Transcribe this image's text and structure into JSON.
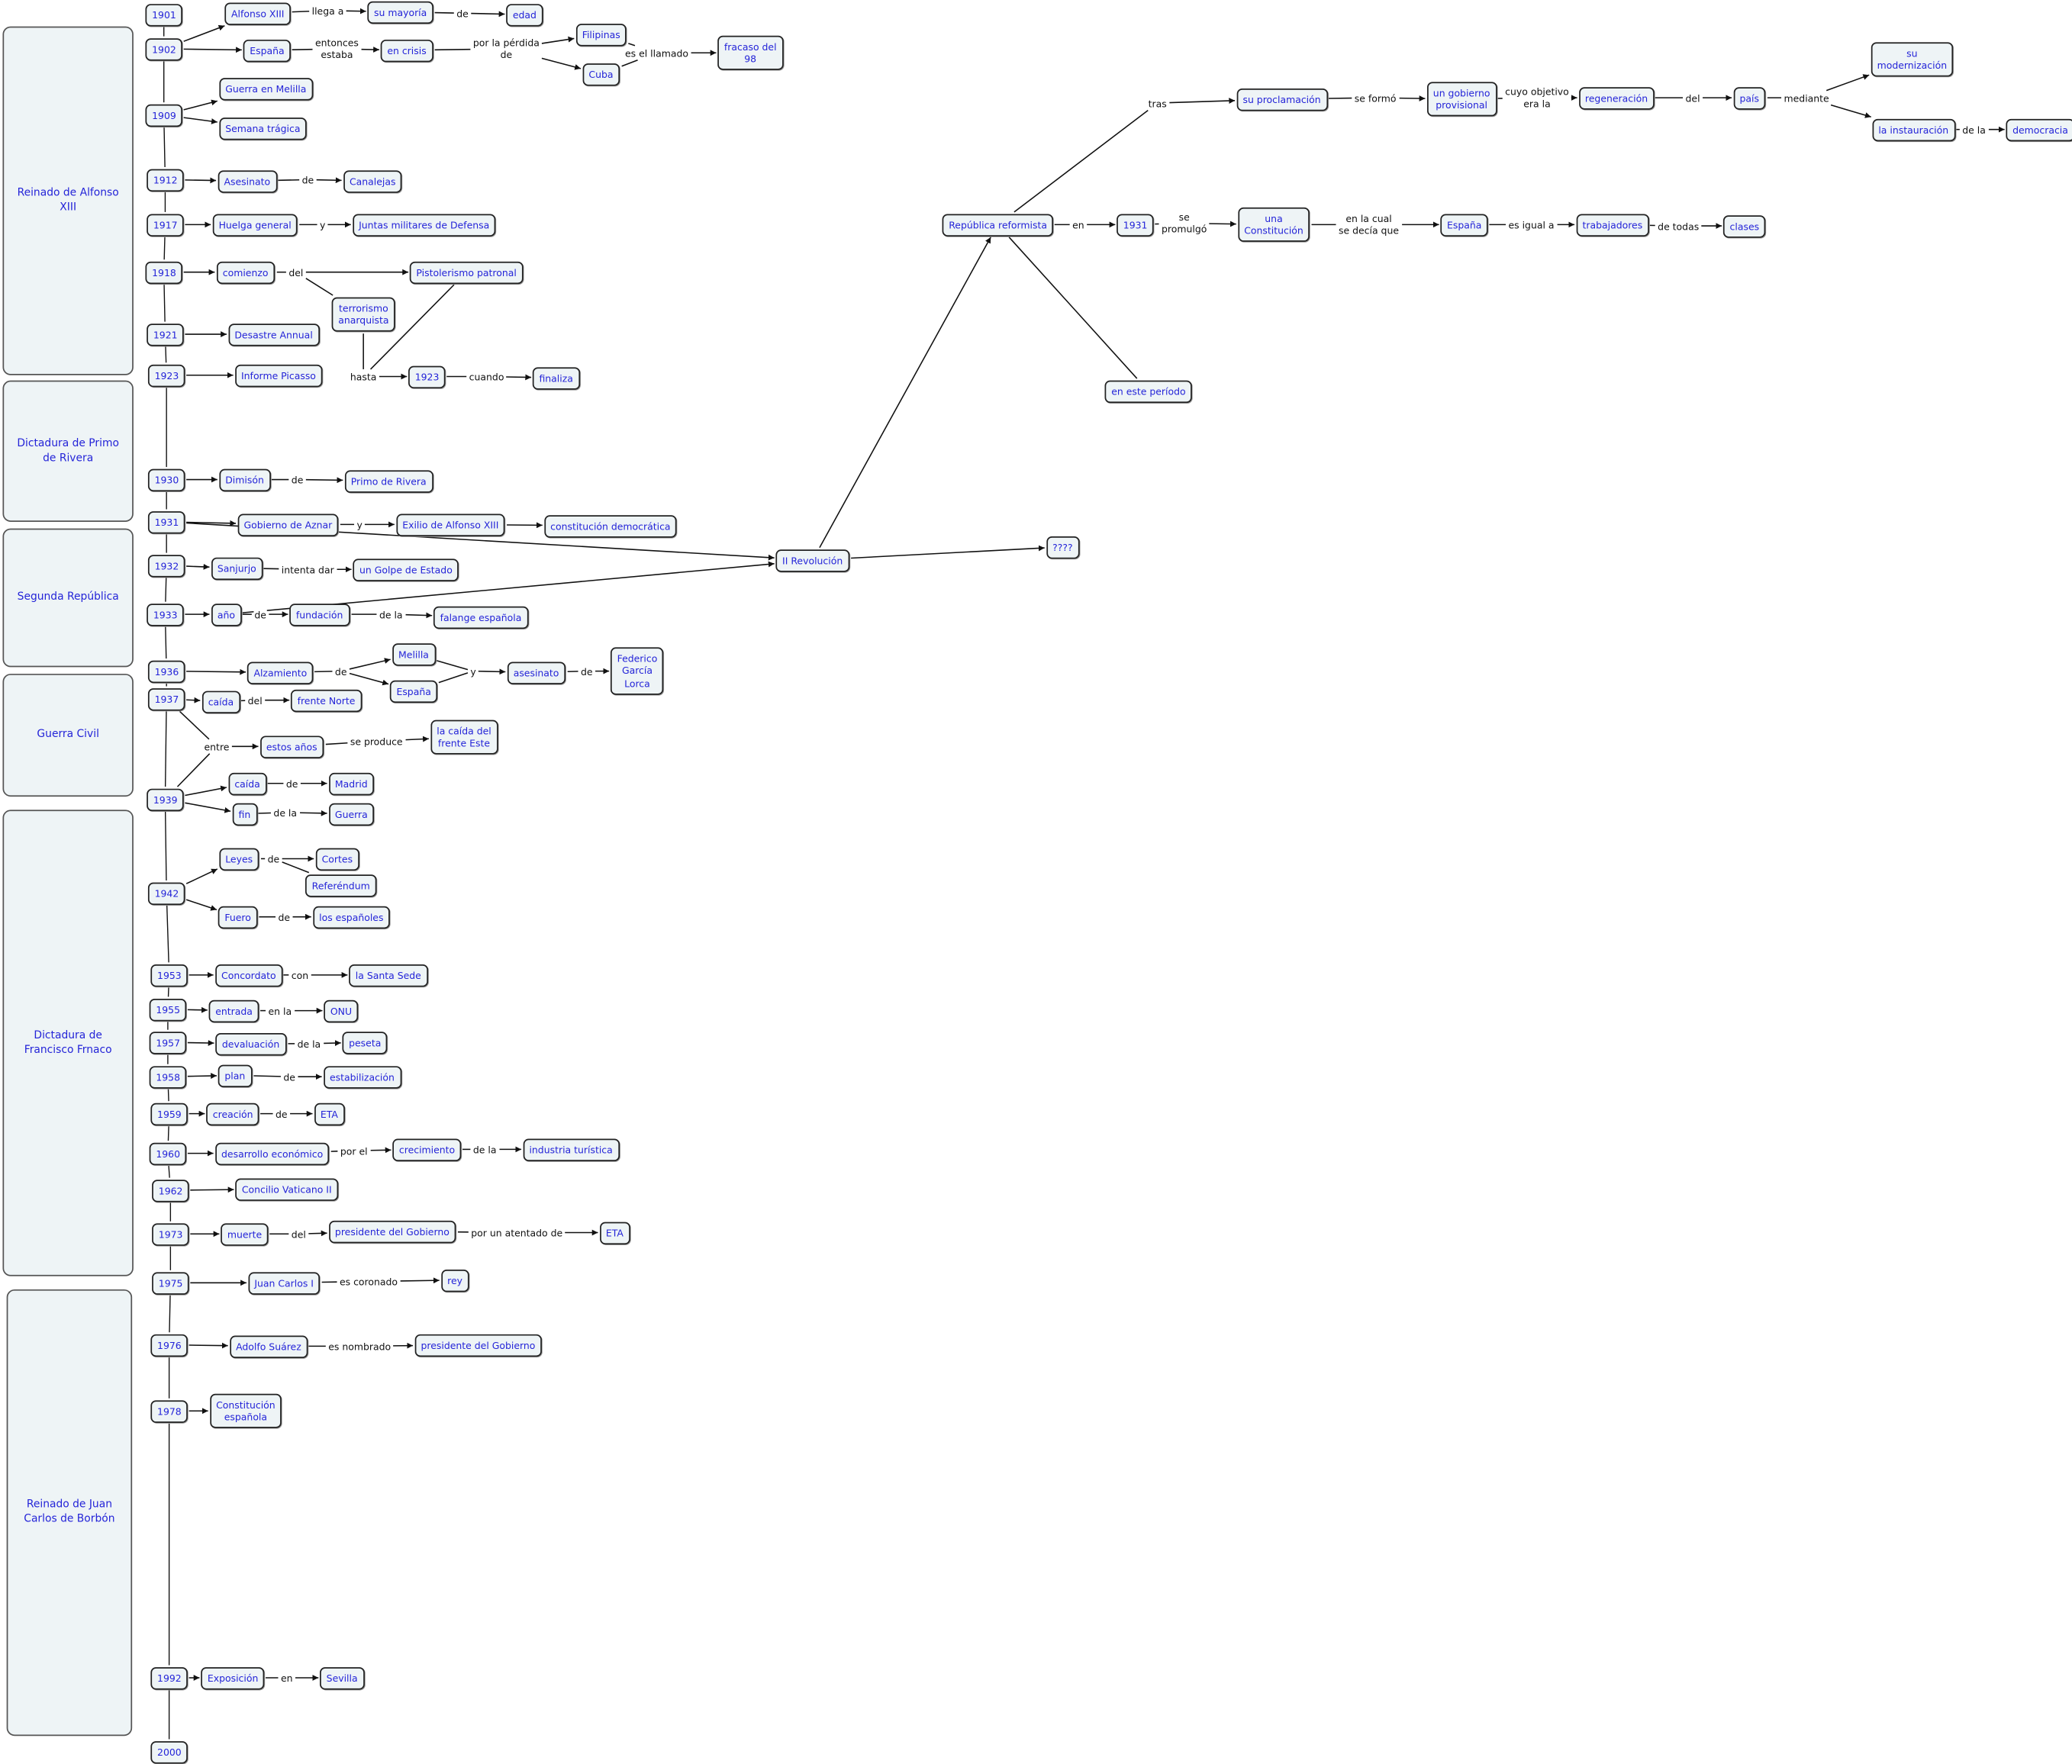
{
  "eras": [
    "Reinado de Alfonso XIII",
    "Dictadura de Primo de Rivera",
    "Segunda República",
    "Guerra Civil",
    "Dictadura de Francisco Frnaco",
    "Reinado de Juan Carlos de Borbón"
  ],
  "concepts": {
    "y1901": "1901",
    "y1902": "1902",
    "y1909": "1909",
    "y1912": "1912",
    "y1917": "1917",
    "y1918": "1918",
    "y1921": "1921",
    "y1923": "1923",
    "y1930": "1930",
    "y1931": "1931",
    "y1932": "1932",
    "y1933": "1933",
    "y1936": "1936",
    "y1937": "1937",
    "y1939": "1939",
    "y1942": "1942",
    "y1953": "1953",
    "y1955": "1955",
    "y1957": "1957",
    "y1958": "1958",
    "y1959": "1959",
    "y1960": "1960",
    "y1962": "1962",
    "y1973": "1973",
    "y1975": "1975",
    "y1976": "1976",
    "y1978": "1978",
    "y1992": "1992",
    "y2000": "2000",
    "c_alfonso": "Alfonso XIII",
    "c_mayoria": "su mayoría",
    "c_edad": "edad",
    "c_espana1": "España",
    "c_crisis": "en crisis",
    "c_filipinas": "Filipinas",
    "c_cuba": "Cuba",
    "c_fracaso": "fracaso del\n98",
    "c_melilla1": "Guerra en Melilla",
    "c_semana": "Semana trágica",
    "c_asesinato1": "Asesinato",
    "c_canalejas": "Canalejas",
    "c_huelga": "Huelga general",
    "c_juntas": "Juntas militares de Defensa",
    "c_comienzo": "comienzo",
    "c_pistol": "Pistolerismo patronal",
    "c_terror": "terrorismo\nanarquista",
    "c_desastre": "Desastre Annual",
    "c_informe": "Informe Picasso",
    "c_1923b": "1923",
    "c_finaliza": "finaliza",
    "c_dimision": "Dimisón",
    "c_primo": "Primo de Rivera",
    "c_aznar": "Gobierno de Aznar",
    "c_exilio": "Exilio de Alfonso XIII",
    "c_constdem": "constitución democrática",
    "c_revolucion": "II Revolución",
    "c_qqq": "????",
    "c_sanjurjo": "Sanjurjo",
    "c_golpe": "un Golpe de Estado",
    "c_ano": "año",
    "c_fundacion": "fundación",
    "c_falange": "falange española",
    "c_alzamiento": "Alzamiento",
    "c_melilla2": "Melilla",
    "c_espana2": "España",
    "c_asesinato2": "asesinato",
    "c_lorca": "Federico\nGarcía\nLorca",
    "c_caida1": "caída",
    "c_norte": "frente Norte",
    "c_estos": "estos años",
    "c_este": "la caída del\nfrente Este",
    "c_caida2": "caída",
    "c_madrid": "Madrid",
    "c_fin": "fin",
    "c_guerra": "Guerra",
    "c_leyes": "Leyes",
    "c_cortes": "Cortes",
    "c_refer": "Referéndum",
    "c_fuero": "Fuero",
    "c_espanoles": "los españoles",
    "c_concordato": "Concordato",
    "c_santa": "la Santa Sede",
    "c_entrada": "entrada",
    "c_onu": "ONU",
    "c_devaluacion": "devaluación",
    "c_peseta": "peseta",
    "c_plan": "plan",
    "c_estab": "estabilización",
    "c_creacion": "creación",
    "c_eta1": "ETA",
    "c_desarrollo": "desarrollo económico",
    "c_crec": "crecimiento",
    "c_industria": "industria turística",
    "c_concilio": "Concilio Vaticano II",
    "c_muerte": "muerte",
    "c_presidente1": "presidente del Gobierno",
    "c_eta2": "ETA",
    "c_juan": "Juan Carlos I",
    "c_rey": "rey",
    "c_suarez": "Adolfo Suárez",
    "c_presidente2": "presidente del Gobierno",
    "c_const": "Constitución\nespañola",
    "c_expo": "Exposición",
    "c_sevilla": "Sevilla",
    "c_republica": "República reformista",
    "c_1931b": "1931",
    "c_una": "una\nConstitución",
    "c_espana3": "España",
    "c_trab": "trabajadores",
    "c_clases": "clases",
    "c_proclam": "su proclamación",
    "c_gobprov": "un gobierno\nprovisional",
    "c_regen": "regeneración",
    "c_pais": "país",
    "c_moderni": "su\nmodernización",
    "c_instaur": "la instauración",
    "c_democracia": "democracia",
    "c_periodo": "en este período"
  },
  "linking_phrases": {
    "l_llega": "llega a",
    "l_de1": "de",
    "l_entonces": "entonces\nestaba",
    "l_perdida": "por la pérdida\nde",
    "l_llamado": "es el llamado",
    "l_de2": "de",
    "l_y1": "y",
    "l_del1": "del",
    "l_hasta": "hasta",
    "l_cuando": "cuando",
    "l_de3": "de",
    "l_y2": "y",
    "l_intenta": "intenta dar",
    "l_de4": "de",
    "l_dela1": "de la",
    "l_de5": "de",
    "l_y3": "y",
    "l_de6": "de",
    "l_del2": "del",
    "l_entre": "entre",
    "l_produce": "se produce",
    "l_de7": "de",
    "l_dela2": "de la",
    "l_de8": "de",
    "l_de9": "de",
    "l_con": "con",
    "l_enla1": "en la",
    "l_dela3": "de la",
    "l_de10": "de",
    "l_de11": "de",
    "l_porel": "por el",
    "l_dela4": "de la",
    "l_del3": "del",
    "l_atentado": "por un atentado de",
    "l_coronado": "es coronado",
    "l_nombrado": "es nombrado",
    "l_en1": "en",
    "l_en2": "en",
    "l_promulgo": "se\npromulgó",
    "l_cual": "en la cual\nse decía que",
    "l_igual": "es igual a",
    "l_todas": "de todas",
    "l_tras": "tras",
    "l_formo": "se formó",
    "l_objetivo": "cuyo objetivo\nera la",
    "l_del4": "del",
    "l_mediante": "mediante",
    "l_dela5": "de la"
  },
  "connections": [
    [
      "y1901",
      "y1902"
    ],
    [
      "y1902",
      "y1909"
    ],
    [
      "y1909",
      "y1912"
    ],
    [
      "y1912",
      "y1917"
    ],
    [
      "y1917",
      "y1918"
    ],
    [
      "y1918",
      "y1921"
    ],
    [
      "y1921",
      "y1923"
    ],
    [
      "y1923",
      "y1930"
    ],
    [
      "y1930",
      "y1931"
    ],
    [
      "y1931",
      "y1932"
    ],
    [
      "y1932",
      "y1933"
    ],
    [
      "y1933",
      "y1936"
    ],
    [
      "y1936",
      "y1937"
    ],
    [
      "y1937",
      "y1939"
    ],
    [
      "y1939",
      "y1942"
    ],
    [
      "y1942",
      "y1953"
    ],
    [
      "y1953",
      "y1955"
    ],
    [
      "y1955",
      "y1957"
    ],
    [
      "y1957",
      "y1958"
    ],
    [
      "y1958",
      "y1959"
    ],
    [
      "y1959",
      "y1960"
    ],
    [
      "y1960",
      "y1962"
    ],
    [
      "y1962",
      "y1973"
    ],
    [
      "y1973",
      "y1975"
    ],
    [
      "y1975",
      "y1976"
    ],
    [
      "y1976",
      "y1978"
    ],
    [
      "y1978",
      "y1992"
    ],
    [
      "y1992",
      "y2000"
    ],
    [
      "y1902",
      "c_alfonso"
    ],
    [
      "c_alfonso",
      "l_llega"
    ],
    [
      "l_llega",
      "c_mayoria"
    ],
    [
      "c_mayoria",
      "l_de1"
    ],
    [
      "l_de1",
      "c_edad"
    ],
    [
      "y1902",
      "c_espana1"
    ],
    [
      "c_espana1",
      "l_entonces"
    ],
    [
      "l_entonces",
      "c_crisis"
    ],
    [
      "c_crisis",
      "l_perdida"
    ],
    [
      "l_perdida",
      "c_filipinas"
    ],
    [
      "l_perdida",
      "c_cuba"
    ],
    [
      "c_filipinas",
      "l_llamado"
    ],
    [
      "c_cuba",
      "l_llamado"
    ],
    [
      "l_llamado",
      "c_fracaso"
    ],
    [
      "y1909",
      "c_melilla1"
    ],
    [
      "y1909",
      "c_semana"
    ],
    [
      "y1912",
      "c_asesinato1"
    ],
    [
      "c_asesinato1",
      "l_de2"
    ],
    [
      "l_de2",
      "c_canalejas"
    ],
    [
      "y1917",
      "c_huelga"
    ],
    [
      "c_huelga",
      "l_y1"
    ],
    [
      "l_y1",
      "c_juntas"
    ],
    [
      "y1918",
      "c_comienzo"
    ],
    [
      "c_comienzo",
      "l_del1"
    ],
    [
      "l_del1",
      "c_pistol"
    ],
    [
      "l_del1",
      "c_terror"
    ],
    [
      "c_terror",
      "l_hasta"
    ],
    [
      "c_pistol",
      "l_hasta"
    ],
    [
      "l_hasta",
      "c_1923b"
    ],
    [
      "c_1923b",
      "l_cuando"
    ],
    [
      "l_cuando",
      "c_finaliza"
    ],
    [
      "y1921",
      "c_desastre"
    ],
    [
      "y1923",
      "c_informe"
    ],
    [
      "y1930",
      "c_dimision"
    ],
    [
      "c_dimision",
      "l_de3"
    ],
    [
      "l_de3",
      "c_primo"
    ],
    [
      "y1931",
      "c_aznar"
    ],
    [
      "c_aznar",
      "l_y2"
    ],
    [
      "l_y2",
      "c_exilio"
    ],
    [
      "c_exilio",
      "c_constdem"
    ],
    [
      "y1931",
      "c_revolucion"
    ],
    [
      "y1932",
      "c_sanjurjo"
    ],
    [
      "c_sanjurjo",
      "l_intenta"
    ],
    [
      "l_intenta",
      "c_golpe"
    ],
    [
      "y1933",
      "c_ano"
    ],
    [
      "c_ano",
      "l_de4"
    ],
    [
      "l_de4",
      "c_fundacion"
    ],
    [
      "c_fundacion",
      "l_dela1"
    ],
    [
      "l_dela1",
      "c_falange"
    ],
    [
      "c_ano",
      "c_revolucion"
    ],
    [
      "c_revolucion",
      "c_qqq"
    ],
    [
      "c_revolucion",
      "c_republica"
    ],
    [
      "y1936",
      "c_alzamiento"
    ],
    [
      "c_alzamiento",
      "l_de5"
    ],
    [
      "l_de5",
      "c_melilla2"
    ],
    [
      "l_de5",
      "c_espana2"
    ],
    [
      "c_melilla2",
      "l_y3"
    ],
    [
      "c_espana2",
      "l_y3"
    ],
    [
      "l_y3",
      "c_asesinato2"
    ],
    [
      "c_asesinato2",
      "l_de6"
    ],
    [
      "l_de6",
      "c_lorca"
    ],
    [
      "y1937",
      "c_caida1"
    ],
    [
      "c_caida1",
      "l_del2"
    ],
    [
      "l_del2",
      "c_norte"
    ],
    [
      "y1937",
      "l_entre"
    ],
    [
      "y1939",
      "l_entre"
    ],
    [
      "l_entre",
      "c_estos"
    ],
    [
      "c_estos",
      "l_produce"
    ],
    [
      "l_produce",
      "c_este"
    ],
    [
      "y1939",
      "c_caida2"
    ],
    [
      "c_caida2",
      "l_de7"
    ],
    [
      "l_de7",
      "c_madrid"
    ],
    [
      "y1939",
      "c_fin"
    ],
    [
      "c_fin",
      "l_dela2"
    ],
    [
      "l_dela2",
      "c_guerra"
    ],
    [
      "y1942",
      "c_leyes"
    ],
    [
      "c_leyes",
      "l_de8"
    ],
    [
      "l_de8",
      "c_cortes"
    ],
    [
      "l_de8",
      "c_refer"
    ],
    [
      "y1942",
      "c_fuero"
    ],
    [
      "c_fuero",
      "l_de9"
    ],
    [
      "l_de9",
      "c_espanoles"
    ],
    [
      "y1953",
      "c_concordato"
    ],
    [
      "c_concordato",
      "l_con"
    ],
    [
      "l_con",
      "c_santa"
    ],
    [
      "y1955",
      "c_entrada"
    ],
    [
      "c_entrada",
      "l_enla1"
    ],
    [
      "l_enla1",
      "c_onu"
    ],
    [
      "y1957",
      "c_devaluacion"
    ],
    [
      "c_devaluacion",
      "l_dela3"
    ],
    [
      "l_dela3",
      "c_peseta"
    ],
    [
      "y1958",
      "c_plan"
    ],
    [
      "c_plan",
      "l_de10"
    ],
    [
      "l_de10",
      "c_estab"
    ],
    [
      "y1959",
      "c_creacion"
    ],
    [
      "c_creacion",
      "l_de11"
    ],
    [
      "l_de11",
      "c_eta1"
    ],
    [
      "y1960",
      "c_desarrollo"
    ],
    [
      "c_desarrollo",
      "l_porel"
    ],
    [
      "l_porel",
      "c_crec"
    ],
    [
      "c_crec",
      "l_dela4"
    ],
    [
      "l_dela4",
      "c_industria"
    ],
    [
      "y1962",
      "c_concilio"
    ],
    [
      "y1973",
      "c_muerte"
    ],
    [
      "c_muerte",
      "l_del3"
    ],
    [
      "l_del3",
      "c_presidente1"
    ],
    [
      "c_presidente1",
      "l_atentado"
    ],
    [
      "l_atentado",
      "c_eta2"
    ],
    [
      "y1975",
      "c_juan"
    ],
    [
      "c_juan",
      "l_coronado"
    ],
    [
      "l_coronado",
      "c_rey"
    ],
    [
      "y1976",
      "c_suarez"
    ],
    [
      "c_suarez",
      "l_nombrado"
    ],
    [
      "l_nombrado",
      "c_presidente2"
    ],
    [
      "y1978",
      "c_const"
    ],
    [
      "y1992",
      "c_expo"
    ],
    [
      "c_expo",
      "l_en1"
    ],
    [
      "l_en1",
      "c_sevilla"
    ],
    [
      "c_republica",
      "l_en2"
    ],
    [
      "l_en2",
      "c_1931b"
    ],
    [
      "c_1931b",
      "l_promulgo"
    ],
    [
      "l_promulgo",
      "c_una"
    ],
    [
      "c_una",
      "l_cual"
    ],
    [
      "l_cual",
      "c_espana3"
    ],
    [
      "c_espana3",
      "l_igual"
    ],
    [
      "l_igual",
      "c_trab"
    ],
    [
      "c_trab",
      "l_todas"
    ],
    [
      "l_todas",
      "c_clases"
    ],
    [
      "c_republica",
      "l_tras"
    ],
    [
      "l_tras",
      "c_proclam"
    ],
    [
      "c_proclam",
      "l_formo"
    ],
    [
      "l_formo",
      "c_gobprov"
    ],
    [
      "c_gobprov",
      "l_objetivo"
    ],
    [
      "l_objetivo",
      "c_regen"
    ],
    [
      "c_regen",
      "l_del4"
    ],
    [
      "l_del4",
      "c_pais"
    ],
    [
      "c_pais",
      "l_mediante"
    ],
    [
      "l_mediante",
      "c_moderni"
    ],
    [
      "l_mediante",
      "c_instaur"
    ],
    [
      "c_instaur",
      "l_dela5"
    ],
    [
      "l_dela5",
      "c_democracia"
    ],
    [
      "c_periodo",
      "c_republica"
    ]
  ],
  "colors": {
    "concept_fill": "#eef4f6",
    "concept_text": "#2424d8",
    "line": "#111111"
  }
}
